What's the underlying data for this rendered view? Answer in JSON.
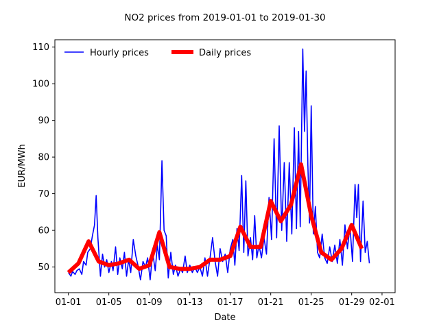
{
  "chart_data": {
    "type": "line",
    "title": "NO2 prices from 2019-01-01 to 2019-01-30",
    "xlabel": "Date",
    "ylabel": "EUR/MWh",
    "xlim": [
      "2018-12-30T16:00",
      "2019-02-02T07:00"
    ],
    "ylim": [
      43,
      112
    ],
    "x_ticks": [
      {
        "date": "2019-01-01",
        "label": "01-01"
      },
      {
        "date": "2019-01-05",
        "label": "01-05"
      },
      {
        "date": "2019-01-09",
        "label": "01-09"
      },
      {
        "date": "2019-01-13",
        "label": "01-13"
      },
      {
        "date": "2019-01-17",
        "label": "01-17"
      },
      {
        "date": "2019-01-21",
        "label": "01-21"
      },
      {
        "date": "2019-01-25",
        "label": "01-25"
      },
      {
        "date": "2019-01-29",
        "label": "01-29"
      },
      {
        "date": "2019-02-01",
        "label": "02-01"
      }
    ],
    "y_ticks": [
      50,
      60,
      70,
      80,
      90,
      100,
      110
    ],
    "grid": false,
    "legend_position": "top-left",
    "series": [
      {
        "name": "Hourly prices",
        "color": "#0000ff",
        "line_width": "thin",
        "points": [
          [
            "2019-01-01T00:00",
            48.5
          ],
          [
            "2019-01-01T06:00",
            47.5
          ],
          [
            "2019-01-01T10:00",
            48.8
          ],
          [
            "2019-01-01T16:00",
            48.0
          ],
          [
            "2019-01-01T20:00",
            49.0
          ],
          [
            "2019-01-02T02:00",
            49.5
          ],
          [
            "2019-01-02T08:00",
            48.0
          ],
          [
            "2019-01-02T12:00",
            51.5
          ],
          [
            "2019-01-02T18:00",
            50.5
          ],
          [
            "2019-01-02T22:00",
            54.0
          ],
          [
            "2019-01-03T04:00",
            55.0
          ],
          [
            "2019-01-03T09:00",
            58.5
          ],
          [
            "2019-01-03T14:00",
            61.5
          ],
          [
            "2019-01-03T18:00",
            69.5
          ],
          [
            "2019-01-03T22:00",
            58.0
          ],
          [
            "2019-01-04T04:00",
            47.5
          ],
          [
            "2019-01-04T09:00",
            53.5
          ],
          [
            "2019-01-04T14:00",
            50.0
          ],
          [
            "2019-01-04T19:00",
            52.0
          ],
          [
            "2019-01-05T00:00",
            48.5
          ],
          [
            "2019-01-05T06:00",
            51.5
          ],
          [
            "2019-01-05T10:00",
            49.0
          ],
          [
            "2019-01-05T16:00",
            55.5
          ],
          [
            "2019-01-05T21:00",
            48.0
          ],
          [
            "2019-01-06T02:00",
            52.5
          ],
          [
            "2019-01-06T08:00",
            49.5
          ],
          [
            "2019-01-06T13:00",
            54.0
          ],
          [
            "2019-01-06T18:00",
            47.5
          ],
          [
            "2019-01-06T23:00",
            52.0
          ],
          [
            "2019-01-07T04:00",
            48.5
          ],
          [
            "2019-01-07T10:00",
            57.5
          ],
          [
            "2019-01-07T16:00",
            53.0
          ],
          [
            "2019-01-07T21:00",
            50.5
          ],
          [
            "2019-01-08T03:00",
            46.5
          ],
          [
            "2019-01-08T09:00",
            51.5
          ],
          [
            "2019-01-08T15:00",
            50.0
          ],
          [
            "2019-01-08T20:00",
            52.5
          ],
          [
            "2019-01-09T02:00",
            46.5
          ],
          [
            "2019-01-09T08:00",
            54.0
          ],
          [
            "2019-01-09T14:00",
            49.0
          ],
          [
            "2019-01-09T19:00",
            56.0
          ],
          [
            "2019-01-10T00:00",
            52.0
          ],
          [
            "2019-01-10T06:00",
            79.0
          ],
          [
            "2019-01-10T11:00",
            60.0
          ],
          [
            "2019-01-10T16:00",
            58.5
          ],
          [
            "2019-01-10T21:00",
            47.0
          ],
          [
            "2019-01-11T03:00",
            54.0
          ],
          [
            "2019-01-11T09:00",
            48.0
          ],
          [
            "2019-01-11T14:00",
            50.5
          ],
          [
            "2019-01-11T20:00",
            47.5
          ],
          [
            "2019-01-12T02:00",
            49.5
          ],
          [
            "2019-01-12T07:00",
            48.5
          ],
          [
            "2019-01-12T13:00",
            53.0
          ],
          [
            "2019-01-12T18:00",
            48.5
          ],
          [
            "2019-01-13T00:00",
            50.5
          ],
          [
            "2019-01-13T06:00",
            48.5
          ],
          [
            "2019-01-13T12:00",
            50.0
          ],
          [
            "2019-01-13T18:00",
            48.5
          ],
          [
            "2019-01-14T00:00",
            50.0
          ],
          [
            "2019-01-14T06:00",
            47.5
          ],
          [
            "2019-01-14T12:00",
            52.5
          ],
          [
            "2019-01-14T18:00",
            47.5
          ],
          [
            "2019-01-15T00:00",
            52.5
          ],
          [
            "2019-01-15T06:00",
            58.0
          ],
          [
            "2019-01-15T12:00",
            51.5
          ],
          [
            "2019-01-15T18:00",
            47.5
          ],
          [
            "2019-01-16T00:00",
            55.0
          ],
          [
            "2019-01-16T06:00",
            51.5
          ],
          [
            "2019-01-16T12:00",
            53.5
          ],
          [
            "2019-01-16T18:00",
            48.5
          ],
          [
            "2019-01-17T00:00",
            55.0
          ],
          [
            "2019-01-17T06:00",
            57.5
          ],
          [
            "2019-01-17T11:00",
            50.5
          ],
          [
            "2019-01-17T16:00",
            60.5
          ],
          [
            "2019-01-17T21:00",
            54.5
          ],
          [
            "2019-01-18T03:00",
            75.0
          ],
          [
            "2019-01-18T08:00",
            54.0
          ],
          [
            "2019-01-18T13:00",
            73.5
          ],
          [
            "2019-01-18T18:00",
            53.0
          ],
          [
            "2019-01-19T00:00",
            58.0
          ],
          [
            "2019-01-19T05:00",
            52.0
          ],
          [
            "2019-01-19T10:00",
            64.0
          ],
          [
            "2019-01-19T15:00",
            52.5
          ],
          [
            "2019-01-19T20:00",
            56.0
          ],
          [
            "2019-01-20T02:00",
            52.5
          ],
          [
            "2019-01-20T08:00",
            58.0
          ],
          [
            "2019-01-20T14:00",
            53.5
          ],
          [
            "2019-01-20T20:00",
            69.0
          ],
          [
            "2019-01-21T02:00",
            57.5
          ],
          [
            "2019-01-21T08:00",
            85.0
          ],
          [
            "2019-01-21T14:00",
            58.0
          ],
          [
            "2019-01-21T20:00",
            88.5
          ],
          [
            "2019-01-22T02:00",
            60.0
          ],
          [
            "2019-01-22T08:00",
            78.5
          ],
          [
            "2019-01-22T14:00",
            57.0
          ],
          [
            "2019-01-22T20:00",
            78.5
          ],
          [
            "2019-01-23T02:00",
            59.0
          ],
          [
            "2019-01-23T08:00",
            88.0
          ],
          [
            "2019-01-23T13:00",
            60.5
          ],
          [
            "2019-01-23T18:00",
            87.0
          ],
          [
            "2019-01-23T22:00",
            61.0
          ],
          [
            "2019-01-24T04:00",
            109.5
          ],
          [
            "2019-01-24T08:00",
            87.0
          ],
          [
            "2019-01-24T12:00",
            103.5
          ],
          [
            "2019-01-24T16:00",
            78.0
          ],
          [
            "2019-01-24T20:00",
            62.0
          ],
          [
            "2019-01-25T00:00",
            94.0
          ],
          [
            "2019-01-25T05:00",
            59.0
          ],
          [
            "2019-01-25T10:00",
            66.5
          ],
          [
            "2019-01-25T15:00",
            54.0
          ],
          [
            "2019-01-25T20:00",
            52.5
          ],
          [
            "2019-01-26T02:00",
            59.0
          ],
          [
            "2019-01-26T08:00",
            52.5
          ],
          [
            "2019-01-26T14:00",
            51.0
          ],
          [
            "2019-01-26T20:00",
            55.5
          ],
          [
            "2019-01-27T02:00",
            51.5
          ],
          [
            "2019-01-27T08:00",
            56.0
          ],
          [
            "2019-01-27T14:00",
            51.0
          ],
          [
            "2019-01-27T20:00",
            57.5
          ],
          [
            "2019-01-28T02:00",
            50.5
          ],
          [
            "2019-01-28T08:00",
            61.5
          ],
          [
            "2019-01-28T14:00",
            55.0
          ],
          [
            "2019-01-28T20:00",
            61.0
          ],
          [
            "2019-01-29T02:00",
            51.5
          ],
          [
            "2019-01-29T08:00",
            72.5
          ],
          [
            "2019-01-29T12:00",
            63.5
          ],
          [
            "2019-01-29T16:00",
            72.5
          ],
          [
            "2019-01-29T21:00",
            51.5
          ],
          [
            "2019-01-30T03:00",
            68.0
          ],
          [
            "2019-01-30T08:00",
            54.0
          ],
          [
            "2019-01-30T13:00",
            57.0
          ],
          [
            "2019-01-30T18:00",
            51.0
          ]
        ]
      },
      {
        "name": "Daily prices",
        "color": "#ff0000",
        "line_width": "thick",
        "points": [
          [
            "2019-01-01",
            48.5
          ],
          [
            "2019-01-02",
            51.0
          ],
          [
            "2019-01-03",
            57.0
          ],
          [
            "2019-01-04",
            51.5
          ],
          [
            "2019-01-05",
            50.5
          ],
          [
            "2019-01-06",
            51.0
          ],
          [
            "2019-01-07",
            52.0
          ],
          [
            "2019-01-08",
            49.5
          ],
          [
            "2019-01-09",
            50.5
          ],
          [
            "2019-01-10",
            59.5
          ],
          [
            "2019-01-11",
            50.0
          ],
          [
            "2019-01-12",
            49.5
          ],
          [
            "2019-01-13",
            49.5
          ],
          [
            "2019-01-14",
            50.0
          ],
          [
            "2019-01-15",
            52.0
          ],
          [
            "2019-01-16",
            52.0
          ],
          [
            "2019-01-17",
            53.0
          ],
          [
            "2019-01-18",
            61.0
          ],
          [
            "2019-01-19",
            55.5
          ],
          [
            "2019-01-20",
            55.5
          ],
          [
            "2019-01-21",
            68.0
          ],
          [
            "2019-01-22",
            62.5
          ],
          [
            "2019-01-23",
            67.0
          ],
          [
            "2019-01-24",
            78.0
          ],
          [
            "2019-01-25",
            64.0
          ],
          [
            "2019-01-26",
            54.0
          ],
          [
            "2019-01-27",
            52.0
          ],
          [
            "2019-01-28",
            55.0
          ],
          [
            "2019-01-29",
            61.5
          ],
          [
            "2019-01-30",
            55.0
          ]
        ]
      }
    ]
  }
}
